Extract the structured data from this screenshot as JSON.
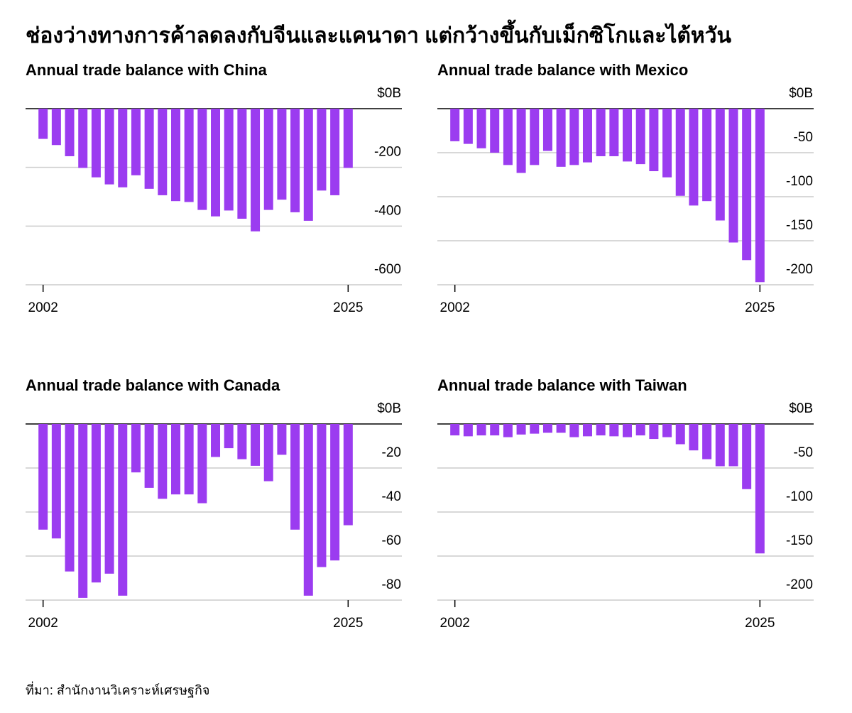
{
  "title": "ช่องว่างทางการค้าลดลงกับจีนและแคนาดา แต่กว้างขึ้นกับเม็กซิโกและไต้หวัน",
  "source": "ที่มา: สำนักงานวิเคราะห์เศรษฐกิจ",
  "chart_data": [
    {
      "type": "bar",
      "title": "Annual trade balance with China",
      "color": "#9b3cf0",
      "x": [
        2002,
        2003,
        2004,
        2005,
        2006,
        2007,
        2008,
        2009,
        2010,
        2011,
        2012,
        2013,
        2014,
        2015,
        2016,
        2017,
        2018,
        2019,
        2020,
        2021,
        2022,
        2023,
        2024,
        2025
      ],
      "values": [
        -103,
        -124,
        -162,
        -202,
        -234,
        -258,
        -268,
        -227,
        -273,
        -295,
        -315,
        -318,
        -345,
        -367,
        -347,
        -375,
        -418,
        -345,
        -310,
        -353,
        -382,
        -279,
        -295,
        -202
      ],
      "xlim": [
        2001,
        2026
      ],
      "xticks": [
        2002,
        2025
      ],
      "ylim": [
        -600,
        0
      ],
      "yticks": [
        {
          "value": 0,
          "label": "$0B"
        },
        -200,
        -400,
        -600
      ]
    },
    {
      "type": "bar",
      "title": "Annual trade balance with Mexico",
      "color": "#9b3cf0",
      "x": [
        2002,
        2003,
        2004,
        2005,
        2006,
        2007,
        2008,
        2009,
        2010,
        2011,
        2012,
        2013,
        2014,
        2015,
        2016,
        2017,
        2018,
        2019,
        2020,
        2021,
        2022,
        2023,
        2024,
        2025
      ],
      "values": [
        -37,
        -40,
        -45,
        -50,
        -64,
        -73,
        -64,
        -48,
        -66,
        -64,
        -61,
        -54,
        -54,
        -60,
        -63,
        -71,
        -78,
        -99,
        -110,
        -105,
        -127,
        -152,
        -172,
        -197
      ],
      "xlim": [
        2001,
        2026
      ],
      "xticks": [
        2002,
        2025
      ],
      "ylim": [
        -200,
        0
      ],
      "yticks": [
        {
          "value": 0,
          "label": "$0B"
        },
        -50,
        -100,
        -150,
        -200
      ]
    },
    {
      "type": "bar",
      "title": "Annual trade balance with Canada",
      "color": "#9b3cf0",
      "x": [
        2002,
        2003,
        2004,
        2005,
        2006,
        2007,
        2008,
        2009,
        2010,
        2011,
        2012,
        2013,
        2014,
        2015,
        2016,
        2017,
        2018,
        2019,
        2020,
        2021,
        2022,
        2023,
        2024,
        2025
      ],
      "values": [
        -48,
        -52,
        -67,
        -79,
        -72,
        -68,
        -78,
        -22,
        -29,
        -34,
        -32,
        -32,
        -36,
        -15,
        -11,
        -16,
        -19,
        -26,
        -14,
        -48,
        -78,
        -65,
        -62,
        -46
      ],
      "xlim": [
        2001,
        2026
      ],
      "xticks": [
        2002,
        2025
      ],
      "ylim": [
        -80,
        0
      ],
      "yticks": [
        {
          "value": 0,
          "label": "$0B"
        },
        -20,
        -40,
        -60,
        -80
      ]
    },
    {
      "type": "bar",
      "title": "Annual trade balance with Taiwan",
      "color": "#9b3cf0",
      "x": [
        2002,
        2003,
        2004,
        2005,
        2006,
        2007,
        2008,
        2009,
        2010,
        2011,
        2012,
        2013,
        2014,
        2015,
        2016,
        2017,
        2018,
        2019,
        2020,
        2021,
        2022,
        2023,
        2024,
        2025
      ],
      "values": [
        -13,
        -14,
        -13,
        -13,
        -15,
        -12,
        -11,
        -10,
        -10,
        -15,
        -14,
        -13,
        -14,
        -15,
        -13,
        -17,
        -15,
        -23,
        -30,
        -40,
        -48,
        -48,
        -74,
        -147
      ],
      "xlim": [
        2001,
        2026
      ],
      "xticks": [
        2002,
        2025
      ],
      "ylim": [
        -200,
        0
      ],
      "yticks": [
        {
          "value": 0,
          "label": "$0B"
        },
        -50,
        -100,
        -150,
        -200
      ]
    }
  ]
}
